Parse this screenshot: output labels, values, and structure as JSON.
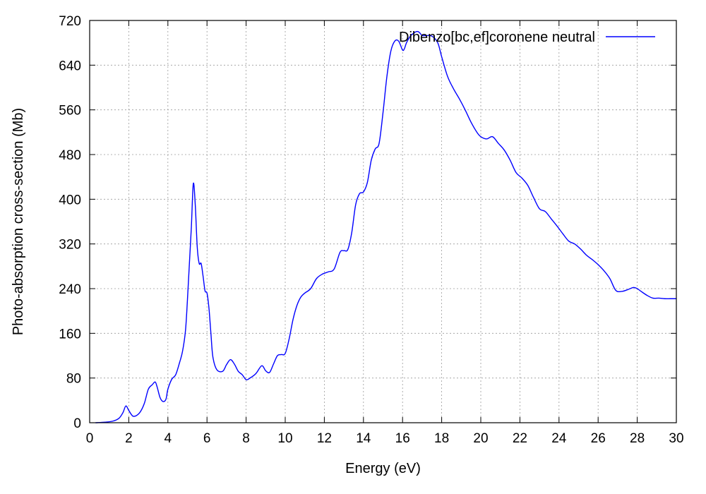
{
  "chart_data": {
    "type": "line",
    "title": "",
    "xlabel": "Energy (eV)",
    "ylabel": "Photo-absorption cross-section (Mb)",
    "xlim": [
      0,
      30
    ],
    "ylim": [
      0,
      720
    ],
    "xticks": [
      0,
      2,
      4,
      6,
      8,
      10,
      12,
      14,
      16,
      18,
      20,
      22,
      24,
      26,
      28,
      30
    ],
    "yticks": [
      0,
      80,
      160,
      240,
      320,
      400,
      480,
      560,
      640,
      720
    ],
    "grid": true,
    "legend_position": "top-right",
    "series": [
      {
        "name": "Dibenzo[bc,ef]coronene neutral",
        "color": "#0000ff",
        "x": [
          0.3,
          0.8,
          1.2,
          1.5,
          1.7,
          1.85,
          2.0,
          2.2,
          2.4,
          2.6,
          2.8,
          3.0,
          3.2,
          3.35,
          3.45,
          3.6,
          3.75,
          3.9,
          4.0,
          4.2,
          4.4,
          4.6,
          4.75,
          4.9,
          5.0,
          5.1,
          5.2,
          5.3,
          5.4,
          5.5,
          5.6,
          5.7,
          5.8,
          5.9,
          6.0,
          6.1,
          6.2,
          6.3,
          6.5,
          6.8,
          7.0,
          7.2,
          7.4,
          7.6,
          7.8,
          8.0,
          8.2,
          8.5,
          8.8,
          9.0,
          9.2,
          9.4,
          9.6,
          9.8,
          10.0,
          10.2,
          10.4,
          10.6,
          10.8,
          11.0,
          11.3,
          11.6,
          11.9,
          12.2,
          12.5,
          12.8,
          13.0,
          13.2,
          13.4,
          13.6,
          13.8,
          14.0,
          14.2,
          14.4,
          14.6,
          14.8,
          15.0,
          15.2,
          15.4,
          15.6,
          15.8,
          16.0,
          16.1,
          16.2,
          16.4,
          16.6,
          16.7,
          16.8,
          16.9,
          17.0,
          17.2,
          17.5,
          17.8,
          18.0,
          18.3,
          18.6,
          18.9,
          19.2,
          19.5,
          19.8,
          20.0,
          20.3,
          20.6,
          20.9,
          21.2,
          21.5,
          21.8,
          22.1,
          22.4,
          22.7,
          23.0,
          23.3,
          23.6,
          23.9,
          24.2,
          24.5,
          24.8,
          25.1,
          25.4,
          25.7,
          26.0,
          26.3,
          26.6,
          26.9,
          27.2,
          27.5,
          27.8,
          28.0,
          28.2,
          28.5,
          28.8,
          29.1,
          29.4,
          29.7,
          30.0
        ],
        "y": [
          0,
          1,
          3,
          8,
          18,
          30,
          22,
          12,
          13,
          20,
          35,
          60,
          68,
          73,
          64,
          45,
          38,
          42,
          60,
          78,
          86,
          108,
          128,
          165,
          220,
          285,
          350,
          428,
          390,
          315,
          285,
          285,
          262,
          236,
          232,
          205,
          160,
          118,
          95,
          92,
          104,
          113,
          105,
          92,
          86,
          77,
          80,
          88,
          102,
          93,
          90,
          105,
          120,
          122,
          124,
          150,
          185,
          210,
          225,
          232,
          240,
          258,
          266,
          270,
          275,
          305,
          308,
          310,
          340,
          390,
          410,
          413,
          430,
          470,
          490,
          500,
          555,
          620,
          665,
          683,
          683,
          667,
          670,
          680,
          692,
          698,
          700,
          700,
          697,
          693,
          693,
          692,
          680,
          655,
          620,
          598,
          580,
          560,
          538,
          520,
          512,
          508,
          512,
          500,
          488,
          470,
          448,
          438,
          425,
          403,
          383,
          378,
          365,
          352,
          338,
          325,
          320,
          311,
          300,
          292,
          283,
          272,
          258,
          237,
          235,
          238,
          242,
          240,
          235,
          228,
          223,
          223,
          222,
          222,
          222
        ]
      }
    ]
  }
}
